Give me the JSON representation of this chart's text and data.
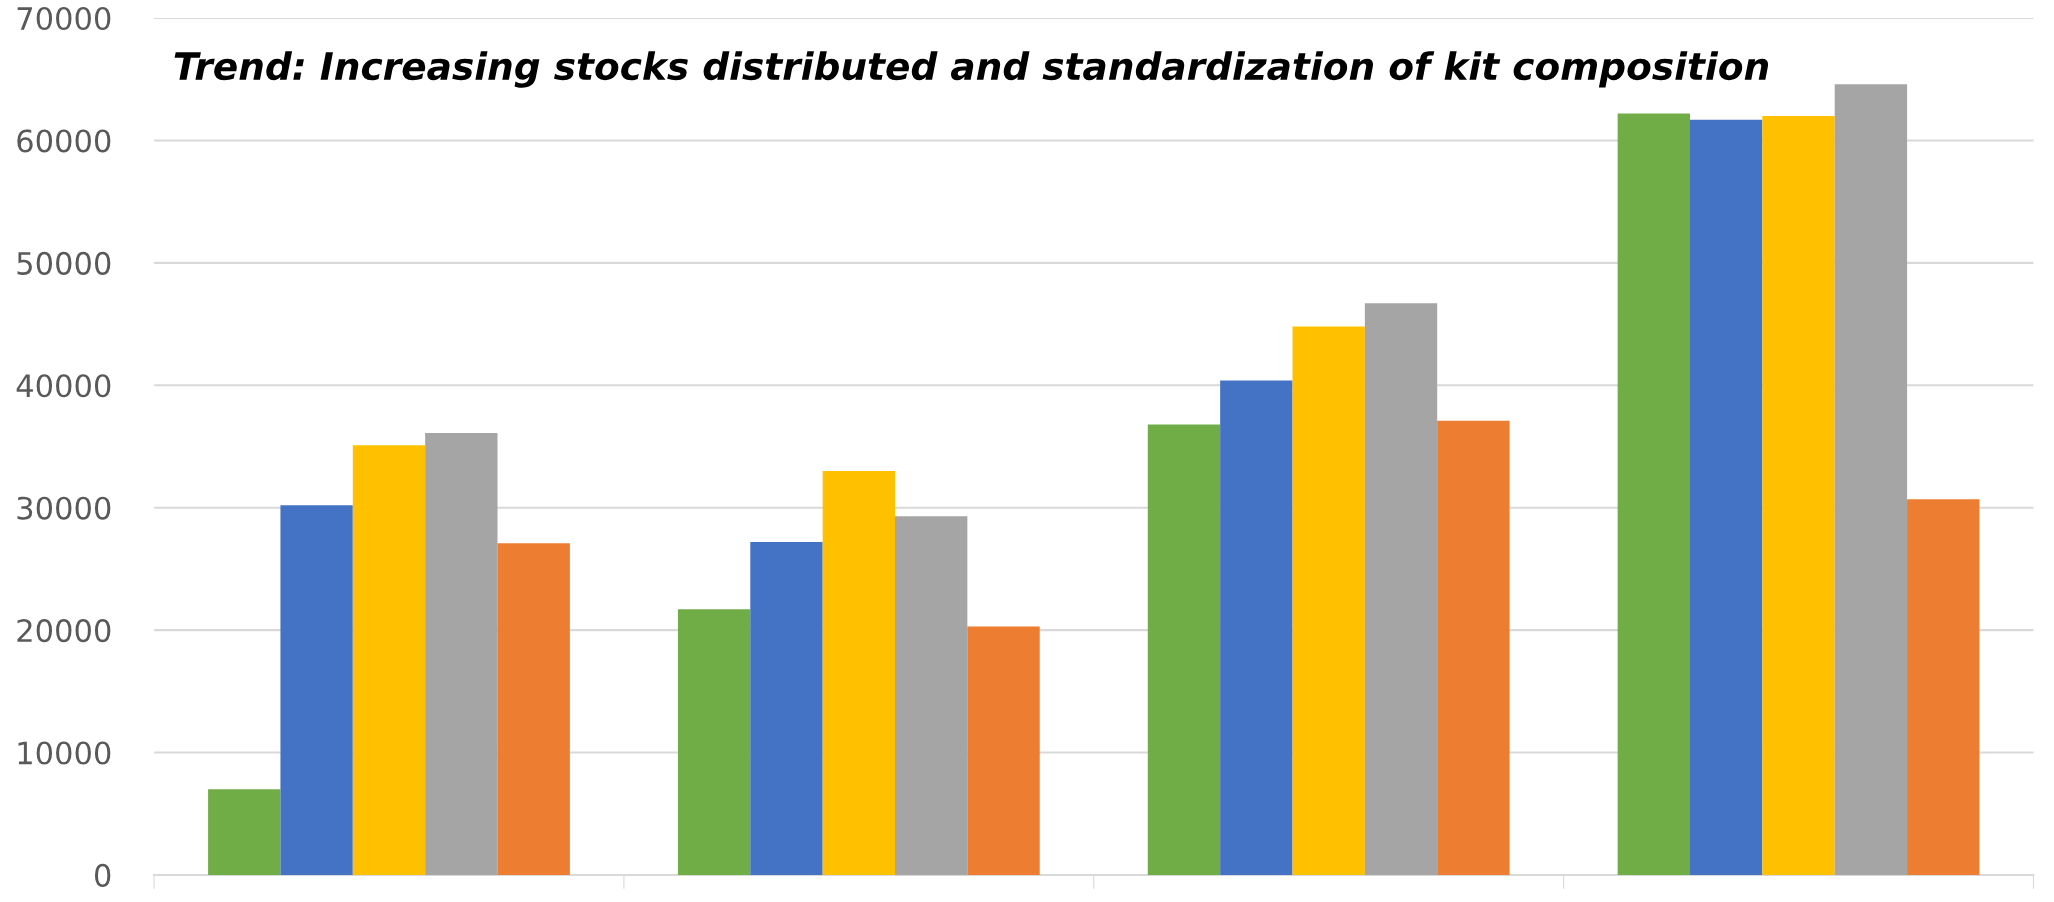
{
  "chart_data": {
    "type": "bar",
    "categories": [
      null,
      null,
      null,
      null
    ],
    "series": [
      {
        "color": "#70ad47",
        "values": [
          7000,
          21700,
          36800,
          62200
        ]
      },
      {
        "color": "#4472c4",
        "values": [
          30200,
          27200,
          40400,
          61700
        ]
      },
      {
        "color": "#ffc000",
        "values": [
          35100,
          33000,
          44800,
          62000
        ]
      },
      {
        "color": "#a5a5a5",
        "values": [
          36100,
          29300,
          46700,
          64600
        ]
      },
      {
        "color": "#ed7d31",
        "values": [
          27100,
          20300,
          37100,
          30700
        ]
      }
    ],
    "ylim": [
      0,
      70000
    ],
    "yticks": [
      0,
      10000,
      20000,
      30000,
      40000,
      50000,
      60000,
      70000
    ],
    "grid": "y",
    "annotations": [
      "Trend: Increasing stocks distributed and standardization of kit composition"
    ]
  }
}
